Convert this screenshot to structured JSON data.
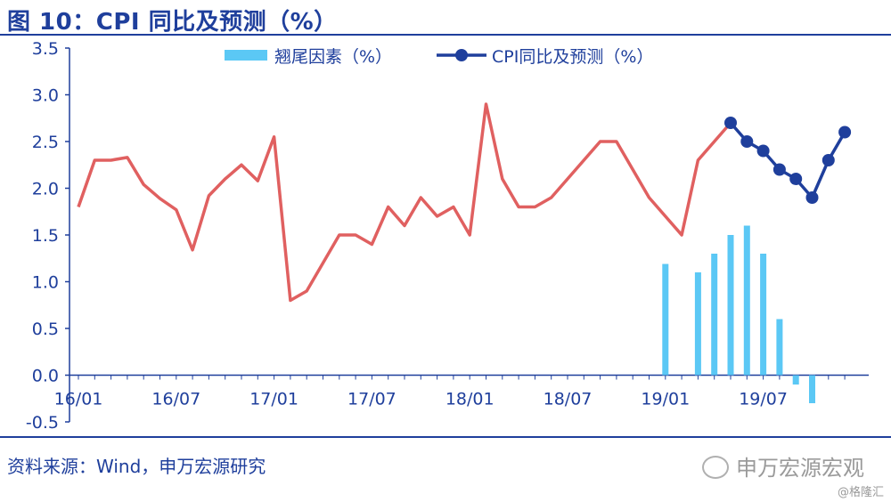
{
  "header": {
    "title": "图 10：CPI 同比及预测（%）"
  },
  "footer": {
    "source": "资料来源：Wind，申万宏源研究",
    "brand": "申万宏源宏观",
    "watermark": "@格隆汇"
  },
  "chart_data": {
    "type": "line",
    "title": "图 10：CPI 同比及预测（%）",
    "ylim": [
      -0.5,
      3.5
    ],
    "yticks": [
      "3.5",
      "3.0",
      "2.5",
      "2.0",
      "1.5",
      "1.0",
      "0.5",
      "0.0",
      "-0.5"
    ],
    "xticks": [
      "16/01",
      "16/07",
      "17/01",
      "17/07",
      "18/01",
      "18/07",
      "19/01",
      "19/07"
    ],
    "legend_position": "top",
    "series": [
      {
        "name": "",
        "kind": "line",
        "color": "#e06060",
        "x": [
          "16/01",
          "16/02",
          "16/03",
          "16/04",
          "16/05",
          "16/06",
          "16/07",
          "16/08",
          "16/09",
          "16/10",
          "16/11",
          "16/12",
          "17/01",
          "17/02",
          "17/03",
          "17/04",
          "17/05",
          "17/06",
          "17/07",
          "17/08",
          "17/09",
          "17/10",
          "17/11",
          "17/12",
          "18/01",
          "18/02",
          "18/03",
          "18/04",
          "18/05",
          "18/06",
          "18/07",
          "18/08",
          "18/09",
          "18/10",
          "18/11",
          "18/12",
          "19/01",
          "19/02",
          "19/03",
          "19/04",
          "19/05"
        ],
        "values": [
          1.8,
          2.3,
          2.3,
          2.33,
          2.04,
          1.89,
          1.77,
          1.34,
          1.92,
          2.1,
          2.25,
          2.08,
          2.55,
          0.8,
          0.9,
          1.2,
          1.5,
          1.5,
          1.4,
          1.8,
          1.6,
          1.9,
          1.7,
          1.8,
          1.5,
          2.9,
          2.1,
          1.8,
          1.8,
          1.9,
          2.1,
          2.3,
          2.5,
          2.5,
          2.2,
          1.9,
          1.7,
          1.5,
          2.3,
          2.5,
          2.7
        ]
      },
      {
        "name": "CPI同比及预测（%）",
        "kind": "line-marker",
        "color": "#1f3f9c",
        "x": [
          "19/05",
          "19/06",
          "19/07",
          "19/08",
          "19/09",
          "19/10",
          "19/11",
          "19/12"
        ],
        "values": [
          2.7,
          2.5,
          2.4,
          2.2,
          2.1,
          1.9,
          2.3,
          2.6
        ]
      },
      {
        "name": "翘尾因素（%）",
        "kind": "bar",
        "color": "#5bc8f5",
        "x": [
          "19/01",
          "19/03",
          "19/04",
          "19/05",
          "19/06",
          "19/07",
          "19/08",
          "19/09",
          "19/10"
        ],
        "values": [
          1.19,
          1.1,
          1.3,
          1.5,
          1.6,
          1.3,
          0.6,
          -0.1,
          -0.3
        ]
      }
    ]
  }
}
